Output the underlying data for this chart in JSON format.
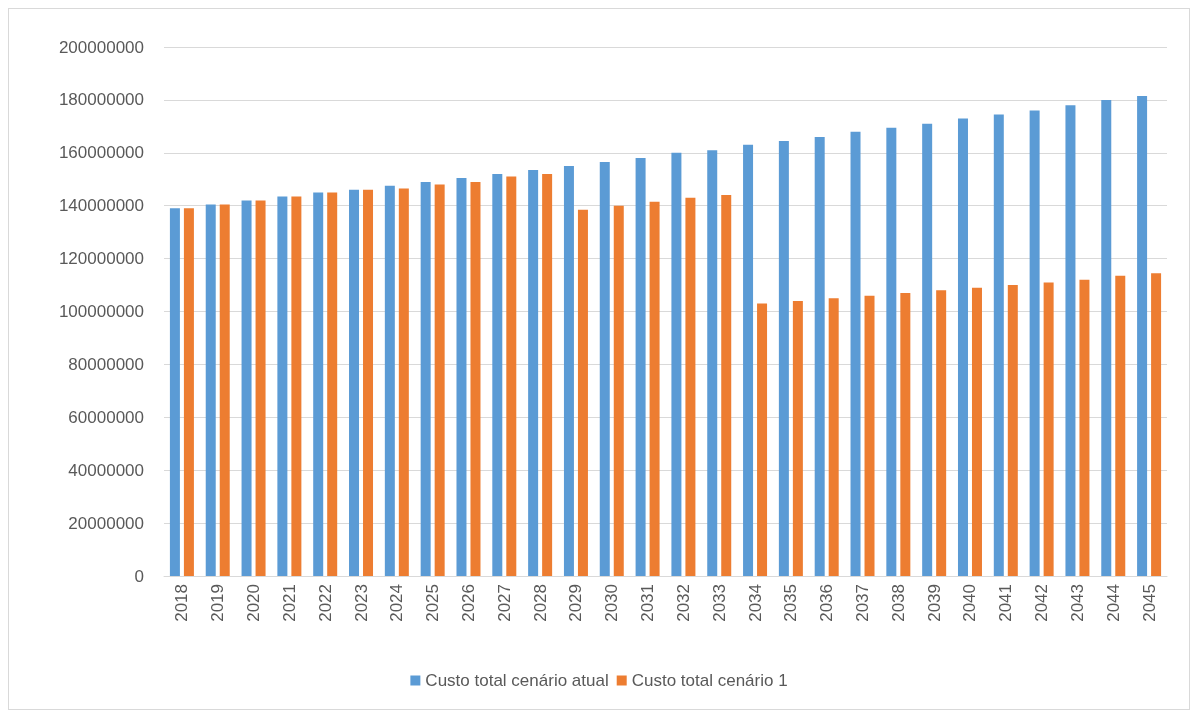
{
  "chart_data": {
    "type": "bar",
    "categories": [
      "2018",
      "2019",
      "2020",
      "2021",
      "2022",
      "2023",
      "2024",
      "2025",
      "2026",
      "2027",
      "2028",
      "2029",
      "2030",
      "2031",
      "2032",
      "2033",
      "2034",
      "2035",
      "2036",
      "2037",
      "2038",
      "2039",
      "2040",
      "2041",
      "2042",
      "2043",
      "2044",
      "2045"
    ],
    "series": [
      {
        "name": "Custo total cenário atual",
        "color": "#5b9bd5",
        "values": [
          139000000,
          140500000,
          142000000,
          143500000,
          145000000,
          146000000,
          147500000,
          149000000,
          150500000,
          152000000,
          153500000,
          155000000,
          156500000,
          158000000,
          160000000,
          161000000,
          163000000,
          164500000,
          166000000,
          168000000,
          169500000,
          171000000,
          173000000,
          174500000,
          176000000,
          178000000,
          180000000,
          181500000
        ]
      },
      {
        "name": "Custo total cenário 1",
        "color": "#ed7d31",
        "values": [
          139000000,
          140500000,
          142000000,
          143500000,
          145000000,
          146000000,
          146500000,
          148000000,
          149000000,
          151000000,
          152000000,
          138500000,
          140000000,
          141500000,
          143000000,
          144000000,
          103000000,
          104000000,
          105000000,
          106000000,
          107000000,
          108000000,
          109000000,
          110000000,
          111000000,
          112000000,
          113500000,
          114500000
        ]
      }
    ],
    "ylim": [
      0,
      200000000
    ],
    "yticks": [
      0,
      20000000,
      40000000,
      60000000,
      80000000,
      100000000,
      120000000,
      140000000,
      160000000,
      180000000,
      200000000
    ],
    "grid": "y",
    "legend": "bottom"
  }
}
